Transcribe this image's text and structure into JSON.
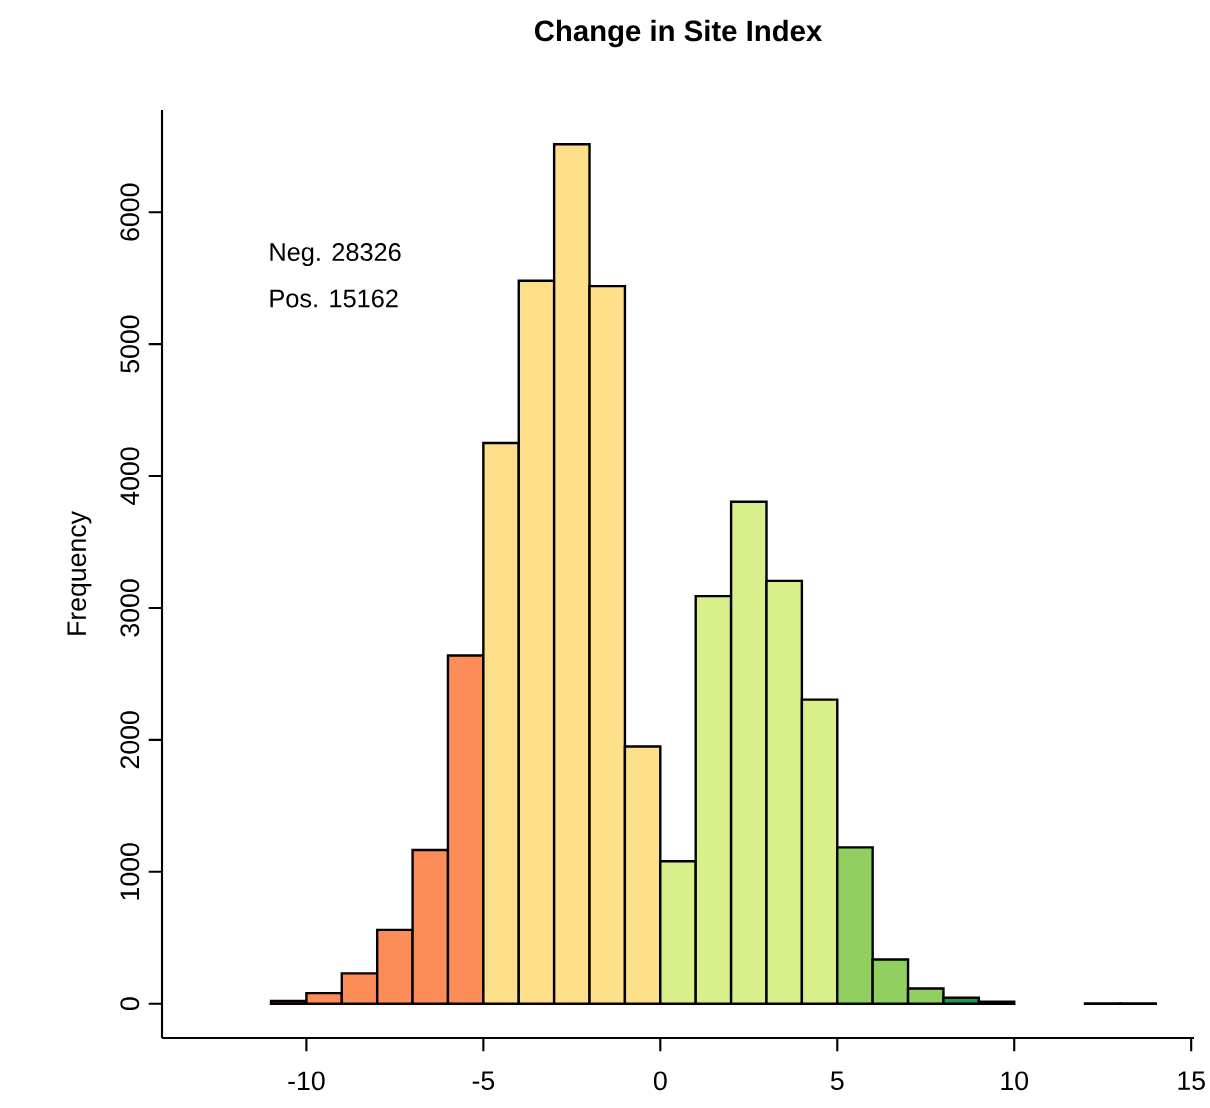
{
  "chart_data": {
    "type": "histogram",
    "title": "Change in Site Index",
    "ylabel": "Frequency",
    "bins": [
      -13,
      -12,
      -11,
      -10,
      -9,
      -8,
      -7,
      -6,
      -5,
      -4,
      -3,
      -2,
      -1,
      0,
      1,
      2,
      3,
      4,
      5,
      6,
      7,
      8,
      9,
      10,
      11,
      12,
      13,
      14
    ],
    "values": [
      null,
      null,
      20,
      80,
      230,
      560,
      1165,
      2640,
      4250,
      5480,
      6515,
      5440,
      1950,
      1080,
      3090,
      3805,
      3205,
      2305,
      1185,
      335,
      115,
      45,
      15,
      null,
      null,
      2,
      1
    ],
    "colors": [
      "#d73027",
      "#d73027",
      "#d73027",
      "#fc8d59",
      "#fc8d59",
      "#fc8d59",
      "#fc8d59",
      "#fc8d59",
      "#fee08b",
      "#fee08b",
      "#fee08b",
      "#fee08b",
      "#fee08b",
      "#d9ef8b",
      "#d9ef8b",
      "#d9ef8b",
      "#d9ef8b",
      "#d9ef8b",
      "#91cf60",
      "#91cf60",
      "#91cf60",
      "#1a9850",
      "#1a9850",
      "#1a9850",
      "#1a9850",
      "#1a9850",
      "#1a9850"
    ],
    "xlim": [
      -14.08,
      15.08
    ],
    "ylim": [
      -260,
      6775
    ],
    "xticks": [
      -10,
      -5,
      0,
      5,
      10,
      15
    ],
    "yticks": [
      0,
      1000,
      2000,
      3000,
      4000,
      5000,
      6000
    ],
    "annotations": [
      "Neg.  28326",
      "Pos.  15162"
    ]
  }
}
